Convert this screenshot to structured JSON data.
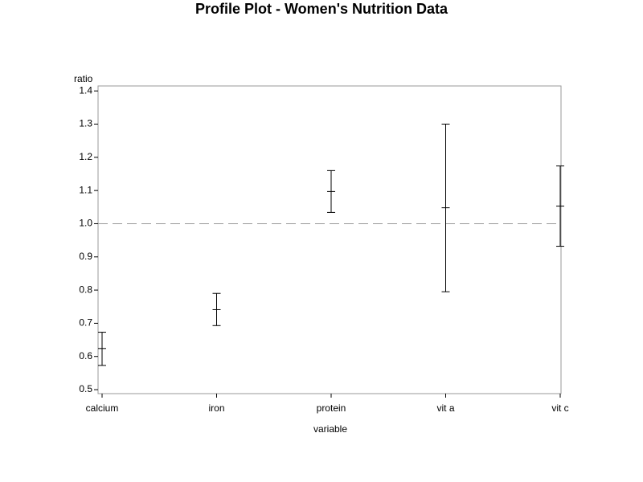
{
  "chart_data": {
    "type": "errorbar",
    "title": "Profile Plot - Women's Nutrition Data",
    "x_label": "variable",
    "y_label": "ratio",
    "categories": [
      "calcium",
      "iron",
      "protein",
      "vit a",
      "vit c"
    ],
    "values": [
      0.624,
      0.741,
      1.097,
      1.048,
      1.053
    ],
    "lower": [
      0.573,
      0.693,
      1.034,
      0.795,
      0.932
    ],
    "upper": [
      0.673,
      0.79,
      1.16,
      1.3,
      1.174
    ],
    "color": "#000000",
    "reference_line": 1,
    "reference_color": "#999999",
    "ylim": [
      0.488,
      1.415
    ],
    "yticks": [
      {
        "value": 0.5,
        "label": "0.5"
      },
      {
        "value": 0.6,
        "label": "0.6"
      },
      {
        "value": 0.7,
        "label": "0.7"
      },
      {
        "value": 0.8,
        "label": "0.8"
      },
      {
        "value": 0.9,
        "label": "0.9"
      },
      {
        "value": 1,
        "label": "1.0"
      },
      {
        "value": 1.1,
        "label": "1.1"
      },
      {
        "value": 1.2,
        "label": "1.2"
      },
      {
        "value": 1.3,
        "label": "1.3"
      },
      {
        "value": 1.4,
        "label": "1.4"
      }
    ],
    "grid": false
  }
}
